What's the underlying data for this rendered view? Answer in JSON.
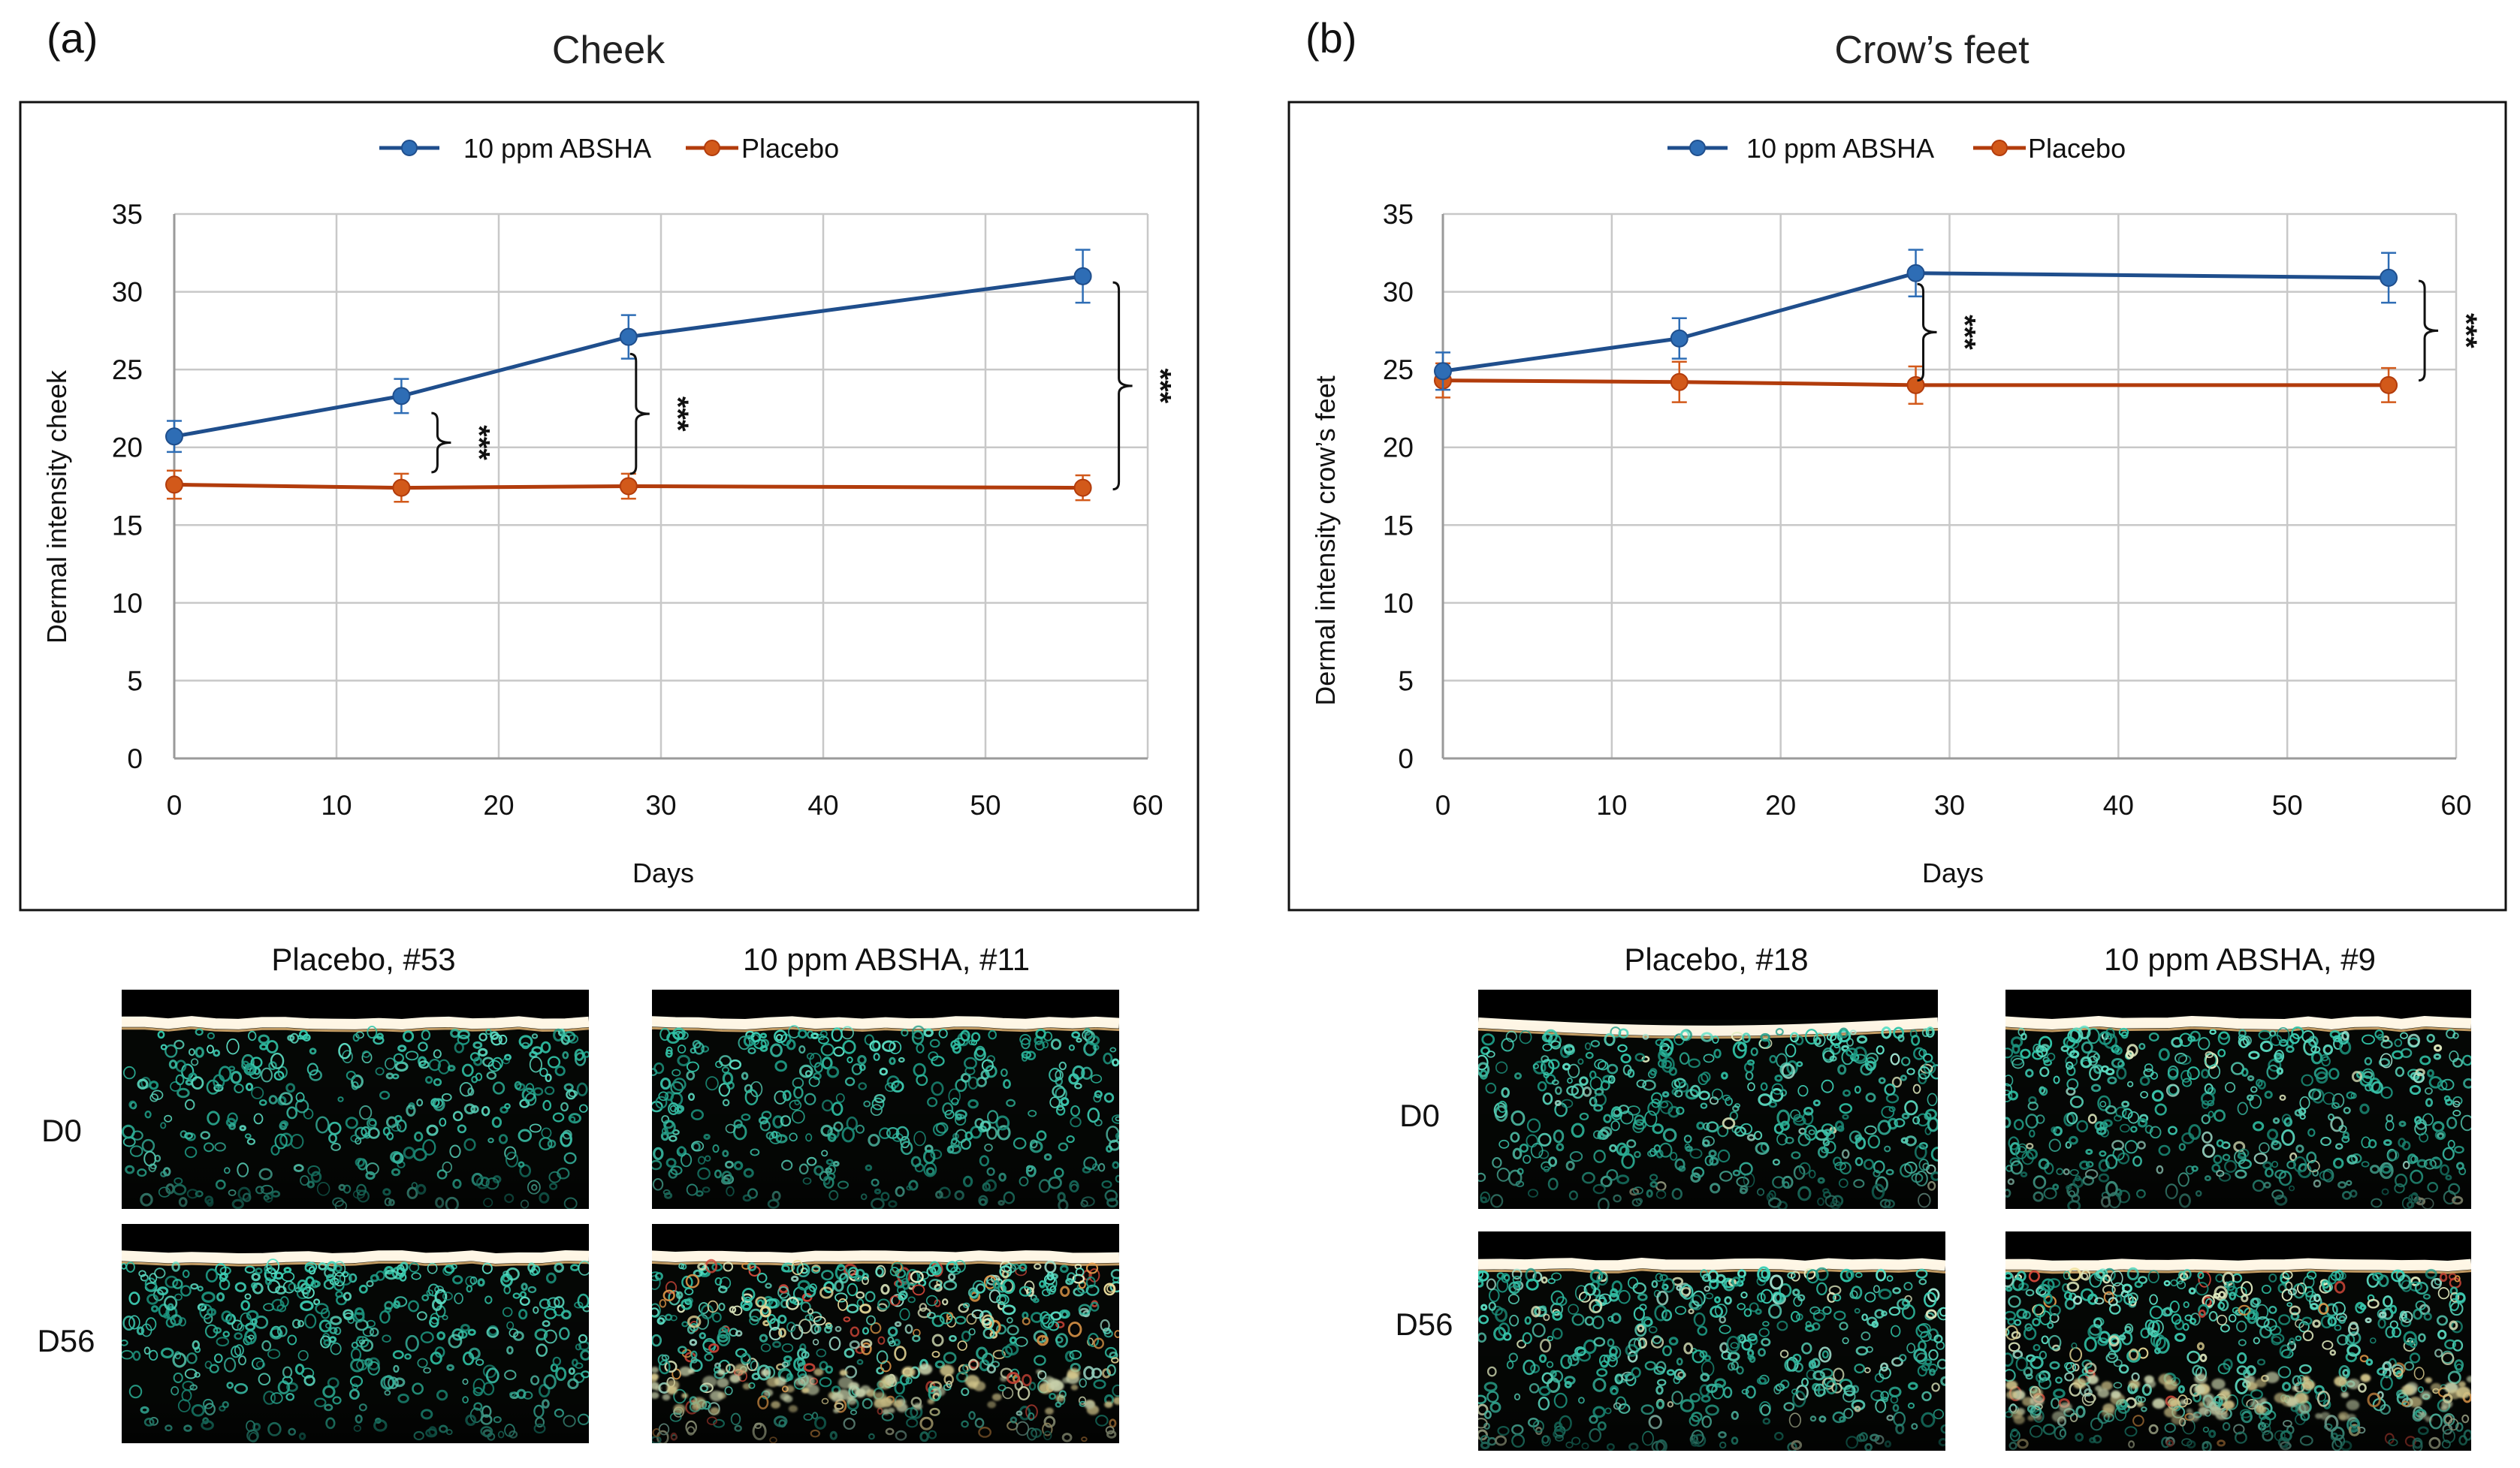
{
  "colors": {
    "absha": "#1f4e8c",
    "absha_marker": "#2e6db5",
    "placebo": "#b23c0c",
    "placebo_marker": "#d2591a",
    "tissue_bg": "#050705",
    "cell_palette": [
      "#31c6a9",
      "#3fd2b8",
      "#1e9c86",
      "#5fe3c8",
      "#a6e8d4",
      "#e8f2c6",
      "#f3e4a0",
      "#e39a4a",
      "#d4483a"
    ]
  },
  "chart_data": [
    {
      "id": "a",
      "type": "line",
      "panel_letter": "(a)",
      "title": "Cheek",
      "xlabel": "Days",
      "ylabel": "Dermal intensity cheek",
      "xlim": [
        0,
        60
      ],
      "ylim": [
        0,
        35
      ],
      "xticks": [
        0,
        10,
        20,
        30,
        40,
        50,
        60
      ],
      "yticks": [
        0,
        5,
        10,
        15,
        20,
        25,
        30,
        35
      ],
      "grid": true,
      "legend_position": "top-center",
      "series": [
        {
          "name": "10 ppm ABSHA",
          "color_key": "absha",
          "x": [
            0,
            14,
            28,
            56
          ],
          "y": [
            20.7,
            23.3,
            27.1,
            31.0
          ],
          "err": [
            1.0,
            1.1,
            1.4,
            1.7
          ]
        },
        {
          "name": "Placebo",
          "color_key": "placebo",
          "x": [
            0,
            14,
            28,
            56
          ],
          "y": [
            17.6,
            17.4,
            17.5,
            17.4
          ],
          "err": [
            0.9,
            0.9,
            0.8,
            0.8
          ]
        }
      ],
      "significance": [
        {
          "x": 14,
          "y_low": 18.4,
          "y_high": 22.2,
          "label": "***"
        },
        {
          "x": 28,
          "y_low": 18.3,
          "y_high": 26.0,
          "label": "***"
        },
        {
          "x": 56,
          "y_low": 17.3,
          "y_high": 30.6,
          "label": "***"
        }
      ]
    },
    {
      "id": "b",
      "type": "line",
      "panel_letter": "(b)",
      "title": "Crow’s feet",
      "xlabel": "Days",
      "ylabel": "Dermal intensity crow’s feet",
      "xlim": [
        0,
        60
      ],
      "ylim": [
        0,
        35
      ],
      "xticks": [
        0,
        10,
        20,
        30,
        40,
        50,
        60
      ],
      "yticks": [
        0,
        5,
        10,
        15,
        20,
        25,
        30,
        35
      ],
      "grid": true,
      "legend_position": "top-center",
      "series": [
        {
          "name": "10 ppm ABSHA",
          "color_key": "absha",
          "x": [
            0,
            14,
            28,
            56
          ],
          "y": [
            24.9,
            27.0,
            31.2,
            30.9
          ],
          "err": [
            1.2,
            1.3,
            1.5,
            1.6
          ]
        },
        {
          "name": "Placebo",
          "color_key": "placebo",
          "x": [
            0,
            14,
            28,
            56
          ],
          "y": [
            24.3,
            24.2,
            24.0,
            24.0
          ],
          "err": [
            1.1,
            1.3,
            1.2,
            1.1
          ]
        }
      ],
      "significance": [
        {
          "x": 28,
          "y_low": 24.3,
          "y_high": 30.5,
          "label": "***"
        },
        {
          "x": 56,
          "y_low": 24.3,
          "y_high": 30.7,
          "label": "***"
        }
      ]
    }
  ],
  "image_grids": [
    {
      "id": "a",
      "column_titles": [
        "Placebo, #53",
        "10 ppm ABSHA, #11"
      ],
      "row_labels": [
        "D0",
        "D56"
      ]
    },
    {
      "id": "b",
      "column_titles": [
        "Placebo, #18",
        "10 ppm ABSHA, #9"
      ],
      "row_labels": [
        "D0",
        "D56"
      ]
    }
  ]
}
